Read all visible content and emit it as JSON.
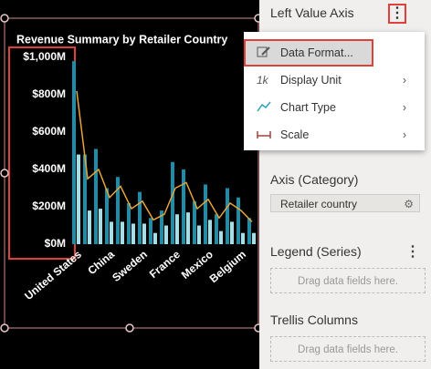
{
  "panel": {
    "header": "Left Value Axis",
    "axis_category": {
      "title": "Axis (Category)",
      "field": "Retailer country"
    },
    "legend": {
      "title": "Legend (Series)",
      "placeholder": "Drag data fields here."
    },
    "trellis": {
      "title": "Trellis Columns",
      "placeholder": "Drag data fields here."
    }
  },
  "menu": {
    "items": [
      "Data Format...",
      "Display Unit",
      "Chart Type",
      "Scale"
    ]
  },
  "chart_data": {
    "type": "bar",
    "title": "Revenue Summary by Retailer Country",
    "categories": [
      "United States",
      null,
      null,
      "China",
      null,
      null,
      "Sweden",
      null,
      null,
      "France",
      null,
      null,
      "Mexico",
      null,
      null,
      "Belgium",
      null
    ],
    "series": [
      {
        "color": "#1b8ea8",
        "values": [
          980,
          480,
          510,
          300,
          360,
          220,
          280,
          140,
          180,
          440,
          400,
          230,
          320,
          160,
          300,
          250,
          140
        ]
      },
      {
        "color": "#a9dde6",
        "values": [
          480,
          180,
          190,
          120,
          120,
          110,
          110,
          60,
          100,
          160,
          170,
          100,
          130,
          70,
          120,
          60,
          60
        ]
      },
      {
        "type": "line",
        "color": "#e8a33a",
        "values": [
          820,
          350,
          400,
          250,
          310,
          190,
          230,
          130,
          160,
          300,
          330,
          190,
          240,
          140,
          220,
          180,
          120
        ]
      }
    ],
    "ylim": [
      0,
      1000
    ],
    "yticks": [
      {
        "value": 0,
        "label": "$0M"
      },
      {
        "value": 200,
        "label": "$200M"
      },
      {
        "value": 400,
        "label": "$400M"
      },
      {
        "value": 600,
        "label": "$600M"
      },
      {
        "value": 800,
        "label": "$800M"
      },
      {
        "value": 1000,
        "label": "$1,000M"
      }
    ]
  }
}
